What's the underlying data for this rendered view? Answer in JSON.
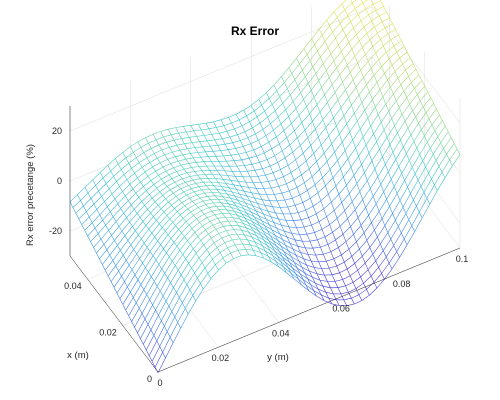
{
  "chart_data": {
    "type": "surface",
    "title": "Rx Error",
    "xlabel": "x (m)",
    "ylabel": "y (m)",
    "zlabel": "Rx error precetange (%)",
    "xlim": [
      0,
      0.05
    ],
    "ylim": [
      0,
      0.1
    ],
    "zlim": [
      -30,
      30
    ],
    "x_ticks": [
      "0",
      "0.02",
      "0.04"
    ],
    "y_ticks": [
      "0",
      "0.02",
      "0.04",
      "0.06",
      "0.08",
      "0.1"
    ],
    "z_ticks": [
      "20",
      "0",
      "-20"
    ],
    "grid": true,
    "colormap": [
      "#3b2fd9",
      "#2f8ee8",
      "#33c9c2",
      "#a8d86a",
      "#f4e23a"
    ],
    "surface": {
      "x_samples": 30,
      "y_samples": 40,
      "corner_values": {
        "x0_y0": -28,
        "x0_y0.1": 18,
        "x0.05_y0": 10,
        "x0.05_y0.1": 25
      }
    }
  }
}
